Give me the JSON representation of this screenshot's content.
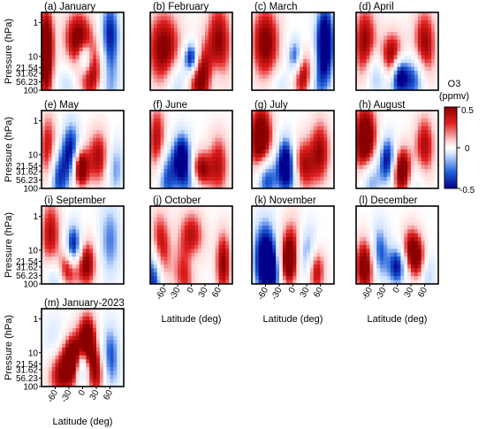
{
  "chart_data": {
    "type": "heatmap",
    "pressure_ylabel": "Pressure (hPa)",
    "latitude_xlabel": "Latitude (deg)",
    "yticks": [
      "1",
      "10",
      "21.54",
      "31.62",
      "56.23",
      "100"
    ],
    "xticks": [
      "-60",
      "-30",
      "0",
      "30",
      "60"
    ],
    "xlim": [
      -90,
      90
    ],
    "ylim": [
      100,
      0.5
    ],
    "y_scale": "log",
    "colorbar": {
      "title_line1": "O3",
      "title_line2": "(ppmv)",
      "ticks": [
        "0.5",
        "0",
        "-0.5"
      ],
      "range": [
        -0.5,
        0.5
      ],
      "colormap": "blue-white-red"
    },
    "panels": [
      {
        "title": "(a) January",
        "blobs": [
          [
            -80,
            3,
            0.6,
            12,
            0.7
          ],
          [
            -80,
            40,
            0.4,
            12,
            0.6
          ],
          [
            -10,
            3,
            0.55,
            22,
            0.6
          ],
          [
            5,
            12,
            -0.6,
            12,
            0.35
          ],
          [
            20,
            30,
            0.55,
            22,
            0.6
          ],
          [
            60,
            2,
            -0.45,
            14,
            0.7
          ],
          [
            55,
            60,
            -0.3,
            18,
            0.7
          ],
          [
            -30,
            70,
            -0.2,
            18,
            0.5
          ]
        ]
      },
      {
        "title": "(b) February",
        "blobs": [
          [
            -60,
            6,
            0.55,
            26,
            0.8
          ],
          [
            0,
            12,
            -0.7,
            12,
            0.35
          ],
          [
            20,
            40,
            0.6,
            22,
            0.6
          ],
          [
            60,
            4,
            0.5,
            20,
            0.9
          ],
          [
            -30,
            60,
            -0.3,
            18,
            0.5
          ],
          [
            50,
            40,
            -0.3,
            14,
            0.5
          ]
        ]
      },
      {
        "title": "(c) March",
        "blobs": [
          [
            -60,
            4,
            0.55,
            22,
            0.8
          ],
          [
            5,
            12,
            -0.55,
            12,
            0.4
          ],
          [
            20,
            35,
            0.6,
            20,
            0.5
          ],
          [
            70,
            4,
            -0.7,
            14,
            0.8
          ],
          [
            -20,
            70,
            -0.2,
            20,
            0.4
          ],
          [
            50,
            60,
            -0.3,
            16,
            0.5
          ]
        ]
      },
      {
        "title": "(d) April",
        "blobs": [
          [
            -70,
            4,
            0.5,
            18,
            0.8
          ],
          [
            -10,
            10,
            0.55,
            18,
            0.5
          ],
          [
            5,
            30,
            -0.5,
            12,
            0.4
          ],
          [
            60,
            5,
            0.5,
            18,
            0.8
          ],
          [
            -50,
            30,
            -0.3,
            14,
            0.5
          ],
          [
            40,
            40,
            -0.4,
            18,
            0.5
          ],
          [
            0,
            60,
            -0.2,
            25,
            0.4
          ]
        ]
      },
      {
        "title": "(e) May",
        "blobs": [
          [
            -75,
            8,
            0.45,
            14,
            0.8
          ],
          [
            -25,
            8,
            -0.5,
            14,
            0.6
          ],
          [
            -5,
            25,
            0.7,
            12,
            0.4
          ],
          [
            -55,
            45,
            -0.45,
            16,
            0.6
          ],
          [
            35,
            12,
            0.45,
            18,
            0.6
          ],
          [
            70,
            25,
            -0.3,
            14,
            0.6
          ]
        ]
      },
      {
        "title": "(f) June",
        "blobs": [
          [
            -75,
            4,
            0.45,
            14,
            0.8
          ],
          [
            -20,
            12,
            -0.6,
            14,
            0.5
          ],
          [
            20,
            30,
            0.6,
            16,
            0.4
          ],
          [
            60,
            20,
            0.4,
            16,
            0.7
          ],
          [
            -55,
            45,
            -0.4,
            16,
            0.6
          ],
          [
            0,
            60,
            -0.3,
            20,
            0.4
          ]
        ]
      },
      {
        "title": "(g) July",
        "blobs": [
          [
            -70,
            4,
            0.7,
            18,
            0.8
          ],
          [
            -15,
            15,
            -0.6,
            14,
            0.5
          ],
          [
            20,
            25,
            0.5,
            18,
            0.6
          ],
          [
            -60,
            45,
            -0.55,
            16,
            0.5
          ],
          [
            -5,
            60,
            -0.3,
            20,
            0.4
          ],
          [
            60,
            8,
            0.45,
            16,
            0.7
          ]
        ]
      },
      {
        "title": "(h) August",
        "blobs": [
          [
            -70,
            4,
            0.7,
            18,
            0.8
          ],
          [
            -20,
            15,
            -0.55,
            14,
            0.5
          ],
          [
            10,
            30,
            0.7,
            16,
            0.5
          ],
          [
            -60,
            50,
            -0.4,
            16,
            0.5
          ],
          [
            60,
            6,
            0.45,
            16,
            0.7
          ],
          [
            40,
            55,
            -0.2,
            18,
            0.5
          ]
        ]
      },
      {
        "title": "(i) September",
        "blobs": [
          [
            -70,
            4,
            0.45,
            16,
            0.8
          ],
          [
            -20,
            10,
            -0.6,
            12,
            0.5
          ],
          [
            -30,
            35,
            0.6,
            18,
            0.4
          ],
          [
            10,
            25,
            0.5,
            14,
            0.5
          ],
          [
            -60,
            55,
            -0.35,
            16,
            0.5
          ],
          [
            60,
            5,
            -0.3,
            16,
            0.8
          ]
        ]
      },
      {
        "title": "(j) October",
        "blobs": [
          [
            -70,
            12,
            0.6,
            16,
            0.8
          ],
          [
            -80,
            55,
            -0.7,
            14,
            0.7
          ],
          [
            0,
            5,
            0.5,
            20,
            0.6
          ],
          [
            0,
            25,
            -0.4,
            16,
            0.5
          ],
          [
            -10,
            50,
            0.5,
            18,
            0.5
          ],
          [
            70,
            25,
            0.5,
            12,
            0.7
          ]
        ]
      },
      {
        "title": "(k) November",
        "blobs": [
          [
            -60,
            12,
            -0.55,
            18,
            0.7
          ],
          [
            -10,
            25,
            0.6,
            14,
            0.5
          ],
          [
            -50,
            50,
            -0.45,
            18,
            0.5
          ],
          [
            30,
            12,
            -0.4,
            16,
            0.6
          ],
          [
            50,
            40,
            0.5,
            14,
            0.5
          ],
          [
            0,
            5,
            0.3,
            20,
            0.6
          ]
        ]
      },
      {
        "title": "(l) December",
        "blobs": [
          [
            -70,
            30,
            0.6,
            16,
            0.6
          ],
          [
            -40,
            12,
            -0.4,
            14,
            0.6
          ],
          [
            0,
            30,
            -0.5,
            14,
            0.4
          ],
          [
            30,
            10,
            0.5,
            14,
            0.5
          ],
          [
            50,
            25,
            0.5,
            12,
            0.5
          ],
          [
            60,
            50,
            -0.35,
            14,
            0.5
          ]
        ]
      },
      {
        "title": "(m) January-2023",
        "blobs": [
          [
            -50,
            30,
            0.6,
            20,
            0.6
          ],
          [
            -20,
            15,
            0.6,
            14,
            0.5
          ],
          [
            10,
            5,
            0.7,
            14,
            0.6
          ],
          [
            0,
            25,
            -0.6,
            12,
            0.4
          ],
          [
            60,
            15,
            -0.4,
            14,
            0.7
          ],
          [
            -60,
            8,
            -0.3,
            18,
            0.6
          ],
          [
            30,
            40,
            0.45,
            16,
            0.5
          ]
        ]
      }
    ]
  }
}
